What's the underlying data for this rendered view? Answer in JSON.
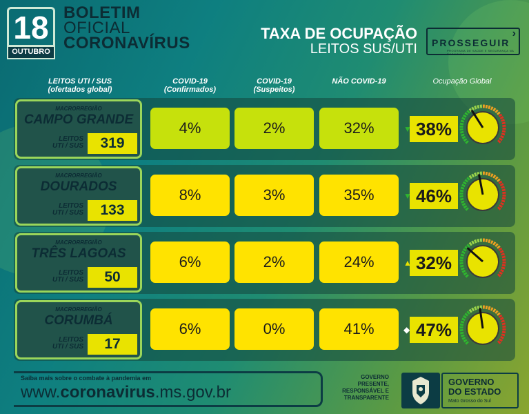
{
  "header": {
    "day": "18",
    "month": "OUTUBRO",
    "boletim_line1": "BOLETIM",
    "boletim_line2": "OFICIAL",
    "boletim_line3": "CORONAVÍRUS",
    "title_line1": "TAXA DE OCUPAÇÃO",
    "title_line2": "LEITOS SUS/UTI",
    "prosseguir": "PROSSEGUIR",
    "prosseguir_sub": "PROGRAMA DE SAÚDE E SEGURANÇA NA ECONOMIA"
  },
  "columns": {
    "leitos": "LEITOS UTI / SUS",
    "leitos_sub": "(ofertados global)",
    "confirmados": "COVID-19",
    "confirmados_sub": "(Confirmados)",
    "suspeitos": "COVID-19",
    "suspeitos_sub": "(Suspeitos)",
    "nao_covid": "NÃO COVID-19",
    "global": "Ocupação Global"
  },
  "regions": [
    {
      "label": "MACRORREGIÃO",
      "name": "CAMPO GRANDE",
      "leitos_label": "LEITOS\nUTI / SUS",
      "leitos": "319",
      "confirmados": "4%",
      "suspeitos": "2%",
      "nao_covid": "32%",
      "global": "38%",
      "global_value": 0.38,
      "trend": "down",
      "color": "g"
    },
    {
      "label": "MACRORREGIÃO",
      "name": "DOURADOS",
      "leitos_label": "LEITOS\nUTI / SUS",
      "leitos": "133",
      "confirmados": "8%",
      "suspeitos": "3%",
      "nao_covid": "35%",
      "global": "46%",
      "global_value": 0.46,
      "trend": "down",
      "color": "y"
    },
    {
      "label": "MACRORREGIÃO",
      "name": "TRÊS LAGOAS",
      "leitos_label": "LEITOS\nUTI / SUS",
      "leitos": "50",
      "confirmados": "6%",
      "suspeitos": "2%",
      "nao_covid": "24%",
      "global": "32%",
      "global_value": 0.32,
      "trend": "up",
      "color": "y"
    },
    {
      "label": "MACRORREGIÃO",
      "name": "CORUMBÁ",
      "leitos_label": "LEITOS\nUTI / SUS",
      "leitos": "17",
      "confirmados": "6%",
      "suspeitos": "0%",
      "nao_covid": "41%",
      "global": "47%",
      "global_value": 0.47,
      "trend": "stable",
      "color": "y"
    }
  ],
  "footer": {
    "small": "Saiba mais sobre o combate à pandemia em",
    "url_prefix": "www.",
    "url_bold": "coronavirus",
    "url_suffix": ".ms.gov.br",
    "gov_text_1": "GOVERNO",
    "gov_text_2": "PRESENTE,",
    "gov_text_3": "RESPONSÁVEL E",
    "gov_text_4": "TRANSPARENTE",
    "gov_title": "GOVERNO\nDO ESTADO",
    "gov_sub": "Mato Grosso do Sul"
  },
  "colors": {
    "green_cell": "#c6e10c",
    "yellow_cell": "#ffe300",
    "dark": "#0c2c34"
  }
}
